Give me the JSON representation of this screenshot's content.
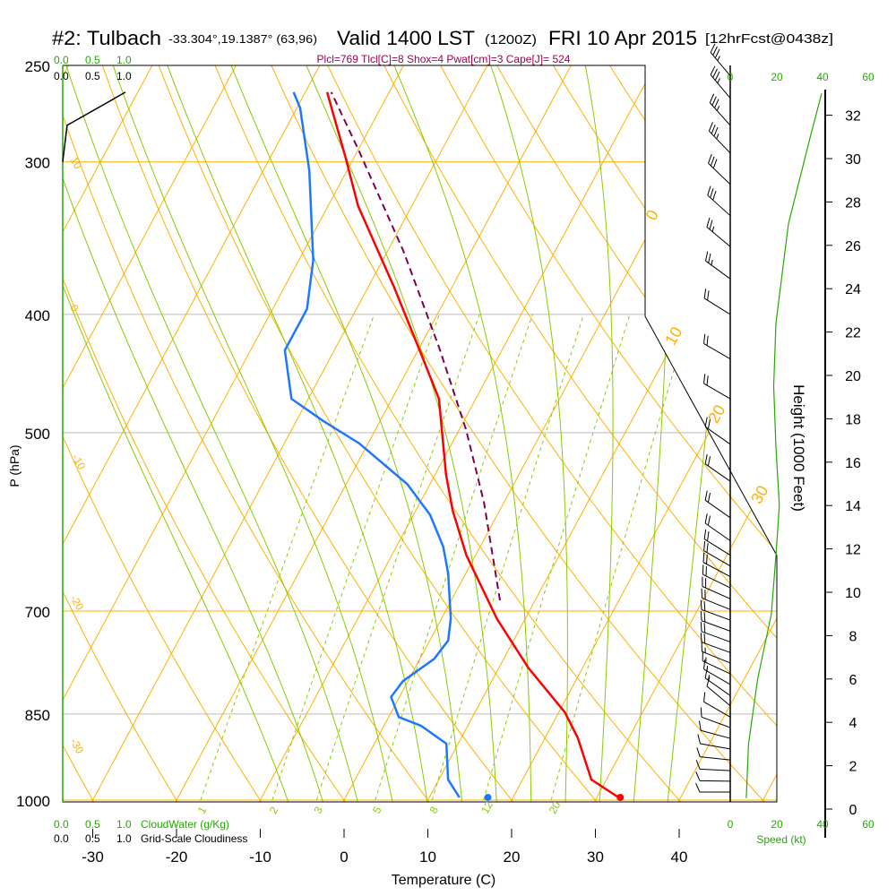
{
  "header": {
    "station": "#2: Tulbach",
    "coords": "-33.304°,19.1387° (63,96)",
    "valid": "Valid 1400 LST",
    "utc": "(1200Z)",
    "date": "FRI 10 Apr 2015",
    "forecast": "[12hrFcst@0438z]",
    "indices": "Plcl=769 Tlcl[C]=8 Shox=4 Pwat[cm]=3 Cape[J]= 524"
  },
  "colors": {
    "temperature": "#ff0000",
    "dewpoint": "#1e78ff",
    "parcel": "#800050",
    "isotherm": "#ffb000",
    "moist": "#88cc00",
    "green_text": "#22aa00",
    "indices": "#a00050"
  },
  "chart_data": {
    "type": "skew-t",
    "title": "#2: Tulbach Valid 1400 LST FRI 10 Apr 2015",
    "xlabel": "Temperature (C)",
    "ylabel": "P (hPa)",
    "y2label": "Height (1000 Feet)",
    "x_ticks": [
      -30,
      -20,
      -10,
      0,
      10,
      20,
      30,
      40
    ],
    "p_ticks": [
      250,
      300,
      400,
      500,
      700,
      850,
      1000
    ],
    "height_ticks": [
      0,
      2,
      4,
      6,
      8,
      10,
      12,
      14,
      16,
      18,
      20,
      22,
      24,
      26,
      28,
      30,
      32
    ],
    "plim": [
      1000,
      250
    ],
    "isotherm_labels": [
      "0",
      "10",
      "20",
      "30"
    ],
    "dry_adiabat_labels": [
      "10",
      "0",
      "-10",
      "-20",
      "-30"
    ],
    "mixing_ratio_labels": [
      "1",
      "2",
      "3",
      "5",
      "8",
      "12",
      "20"
    ],
    "temperature": {
      "name": "Temperature",
      "p": [
        995,
        962,
        889,
        847,
        779,
        710,
        630,
        579,
        541,
        469,
        431,
        380,
        326,
        297,
        263
      ],
      "t": [
        32.6,
        28.2,
        23.9,
        20.7,
        13.5,
        6.6,
        -1.1,
        -5.6,
        -8.7,
        -14.4,
        -19.4,
        -26.9,
        -36.4,
        -41.1,
        -47.4
      ]
    },
    "dewpoint": {
      "name": "Dewpoint",
      "p": [
        995,
        962,
        899,
        869,
        855,
        823,
        799,
        766,
        740,
        710,
        652,
        620,
        584,
        551,
        510,
        489,
        469,
        428,
        396,
        361,
        305,
        271,
        263
      ],
      "t": [
        13.6,
        11.1,
        8.6,
        4.4,
        1.2,
        -1.0,
        -0.6,
        1.7,
        2.2,
        1.1,
        -2.1,
        -4.4,
        -8.0,
        -12.7,
        -21.1,
        -26.8,
        -32.0,
        -35.9,
        -35.9,
        -38.3,
        -44.5,
        -49.6,
        -51.4
      ]
    },
    "parcel": {
      "name": "Parcel",
      "p": [
        686,
        570,
        497,
        427,
        355,
        294,
        263
      ],
      "t": [
        5.8,
        -2.4,
        -9.2,
        -17.5,
        -28.1,
        -39.8,
        -46.9
      ]
    },
    "surface_temperature": 32.8,
    "surface_dewpoint": 17.0,
    "cloud_cover": {
      "name": "Grid-Scale Cloudiness",
      "p": [
        300,
        280,
        263
      ],
      "value": [
        0.0,
        0.07,
        1.0
      ]
    },
    "wind_speed_profile": {
      "name": "Speed (kt)",
      "height_kft": [
        0.5,
        3,
        6,
        9,
        11.7,
        14,
        16.7,
        19.5,
        22.4,
        27,
        31,
        33
      ],
      "speed": [
        7,
        8,
        12,
        18,
        20,
        21.5,
        20,
        19,
        20,
        25.5,
        35,
        40
      ],
      "ticks": [
        0,
        20,
        40,
        60
      ]
    },
    "wind_barbs": [
      {
        "p": 255,
        "spd": 35,
        "dir": 320
      },
      {
        "p": 266,
        "spd": 35,
        "dir": 320
      },
      {
        "p": 280,
        "spd": 35,
        "dir": 318
      },
      {
        "p": 295,
        "spd": 35,
        "dir": 316
      },
      {
        "p": 313,
        "spd": 30,
        "dir": 314
      },
      {
        "p": 332,
        "spd": 30,
        "dir": 312
      },
      {
        "p": 352,
        "spd": 25,
        "dir": 310
      },
      {
        "p": 374,
        "spd": 25,
        "dir": 306
      },
      {
        "p": 400,
        "spd": 20,
        "dir": 302
      },
      {
        "p": 435,
        "spd": 20,
        "dir": 300
      },
      {
        "p": 469,
        "spd": 20,
        "dir": 300
      },
      {
        "p": 511,
        "spd": 20,
        "dir": 305
      },
      {
        "p": 548,
        "spd": 20,
        "dir": 305
      },
      {
        "p": 587,
        "spd": 20,
        "dir": 305
      },
      {
        "p": 613,
        "spd": 20,
        "dir": 305
      },
      {
        "p": 630,
        "spd": 20,
        "dir": 302
      },
      {
        "p": 643,
        "spd": 20,
        "dir": 300
      },
      {
        "p": 656,
        "spd": 20,
        "dir": 298
      },
      {
        "p": 670,
        "spd": 20,
        "dir": 296
      },
      {
        "p": 684,
        "spd": 20,
        "dir": 294
      },
      {
        "p": 698,
        "spd": 20,
        "dir": 292
      },
      {
        "p": 712,
        "spd": 20,
        "dir": 290
      },
      {
        "p": 727,
        "spd": 20,
        "dir": 290
      },
      {
        "p": 742,
        "spd": 20,
        "dir": 290
      },
      {
        "p": 757,
        "spd": 20,
        "dir": 290
      },
      {
        "p": 772,
        "spd": 15,
        "dir": 292
      },
      {
        "p": 788,
        "spd": 15,
        "dir": 295
      },
      {
        "p": 804,
        "spd": 15,
        "dir": 300
      },
      {
        "p": 821,
        "spd": 15,
        "dir": 305
      },
      {
        "p": 837,
        "spd": 10,
        "dir": 310
      },
      {
        "p": 855,
        "spd": 10,
        "dir": 300
      },
      {
        "p": 872,
        "spd": 10,
        "dir": 290
      },
      {
        "p": 890,
        "spd": 10,
        "dir": 285
      },
      {
        "p": 908,
        "spd": 10,
        "dir": 280
      },
      {
        "p": 927,
        "spd": 10,
        "dir": 276
      },
      {
        "p": 946,
        "spd": 10,
        "dir": 273
      },
      {
        "p": 965,
        "spd": 10,
        "dir": 271
      },
      {
        "p": 985,
        "spd": 10,
        "dir": 270
      }
    ]
  },
  "cloud_scale": {
    "top_green": [
      "0.0",
      "0.5",
      "1.0"
    ],
    "top_black": [
      "0.0",
      "0.5",
      "1.0"
    ],
    "bottom_green": [
      "0.0",
      "0.5",
      "1.0"
    ],
    "bottom_green_label": "CloudWater (g/Kg)",
    "bottom_black": [
      "0.0",
      "0.5",
      "1.0"
    ],
    "bottom_black_label": "Grid-Scale Cloudiness"
  },
  "speed_axis": {
    "top": [
      "0",
      "20",
      "40",
      "60"
    ],
    "bottom": [
      "0",
      "20",
      "40",
      "60"
    ],
    "label": "Speed (kt)"
  }
}
